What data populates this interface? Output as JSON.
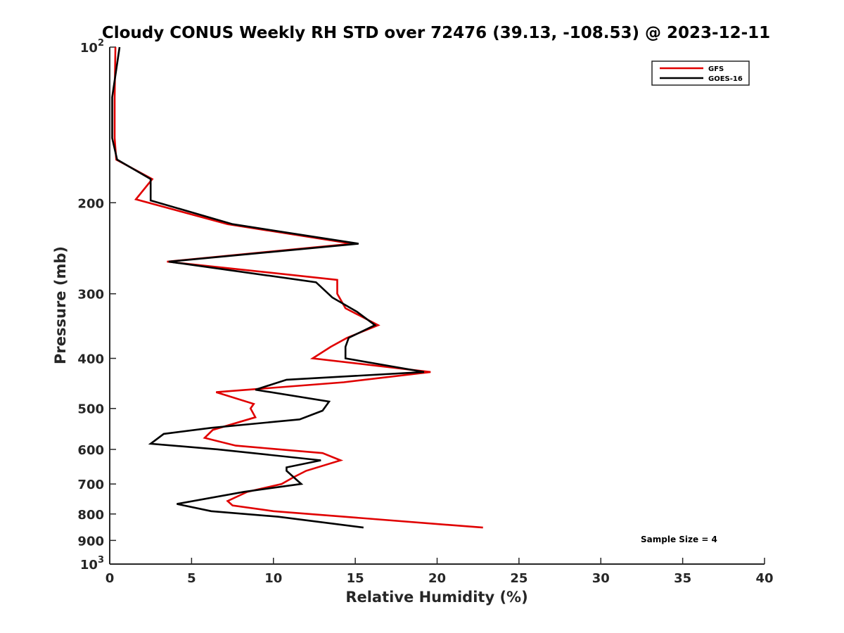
{
  "chart_data": {
    "type": "line",
    "title": "Cloudy CONUS Weekly RH STD over 72476 (39.13, -108.53) @ 2023-12-11",
    "xlabel": "Relative Humidity (%)",
    "ylabel": "Pressure (mb)",
    "xlim": [
      0,
      40
    ],
    "ylim": [
      100,
      1000
    ],
    "y_scale": "log",
    "y_reversed": true,
    "x_ticks": [
      0,
      5,
      10,
      15,
      20,
      25,
      30,
      35,
      40
    ],
    "x_tick_labels": [
      "0",
      "5",
      "10",
      "15",
      "20",
      "25",
      "30",
      "35",
      "40"
    ],
    "y_ticks": [
      100,
      200,
      300,
      400,
      500,
      600,
      700,
      800,
      900,
      1000
    ],
    "y_tick_labels": [
      {
        "base": "10",
        "exp": "2"
      },
      {
        "base": "200"
      },
      {
        "base": "300"
      },
      {
        "base": "400"
      },
      {
        "base": "500"
      },
      {
        "base": "600"
      },
      {
        "base": "700"
      },
      {
        "base": "800"
      },
      {
        "base": "900"
      },
      {
        "base": "10",
        "exp": "3"
      }
    ],
    "grid": false,
    "legend_position": "top-right",
    "annotation": "Sample Size = 4",
    "series": [
      {
        "name": "GFS",
        "color": "#e00000",
        "points": [
          [
            0.35,
            100
          ],
          [
            0.3,
            125
          ],
          [
            0.3,
            150
          ],
          [
            0.4,
            165
          ],
          [
            2.6,
            180
          ],
          [
            1.6,
            197
          ],
          [
            7.2,
            220
          ],
          [
            14.8,
            240
          ],
          [
            3.5,
            260
          ],
          [
            13.9,
            282
          ],
          [
            13.9,
            300
          ],
          [
            14.4,
            320
          ],
          [
            16.4,
            345
          ],
          [
            14.5,
            365
          ],
          [
            13.5,
            380
          ],
          [
            12.4,
            400
          ],
          [
            19.6,
            425
          ],
          [
            14.3,
            445
          ],
          [
            6.5,
            465
          ],
          [
            8.8,
            490
          ],
          [
            8.6,
            500
          ],
          [
            8.9,
            520
          ],
          [
            6.3,
            550
          ],
          [
            5.8,
            570
          ],
          [
            7.7,
            590
          ],
          [
            13.0,
            610
          ],
          [
            14.1,
            630
          ],
          [
            12.0,
            660
          ],
          [
            11.2,
            680
          ],
          [
            10.5,
            700
          ],
          [
            8.4,
            725
          ],
          [
            7.2,
            755
          ],
          [
            7.5,
            770
          ],
          [
            10.0,
            790
          ],
          [
            22.8,
            850
          ]
        ]
      },
      {
        "name": "GOES-16",
        "color": "#000000",
        "points": [
          [
            0.6,
            100
          ],
          [
            0.15,
            125
          ],
          [
            0.15,
            150
          ],
          [
            0.45,
            165
          ],
          [
            2.5,
            180
          ],
          [
            2.5,
            198
          ],
          [
            7.5,
            220
          ],
          [
            15.2,
            240
          ],
          [
            3.6,
            260
          ],
          [
            12.6,
            285
          ],
          [
            13.6,
            305
          ],
          [
            15.1,
            325
          ],
          [
            16.2,
            345
          ],
          [
            14.6,
            365
          ],
          [
            14.4,
            380
          ],
          [
            14.4,
            400
          ],
          [
            19.2,
            425
          ],
          [
            10.8,
            440
          ],
          [
            8.9,
            460
          ],
          [
            13.4,
            485
          ],
          [
            13.0,
            505
          ],
          [
            11.6,
            525
          ],
          [
            6.2,
            545
          ],
          [
            3.3,
            560
          ],
          [
            2.5,
            585
          ],
          [
            6.6,
            600
          ],
          [
            12.9,
            630
          ],
          [
            10.8,
            650
          ],
          [
            10.8,
            660
          ],
          [
            11.7,
            700
          ],
          [
            8.2,
            725
          ],
          [
            4.1,
            765
          ],
          [
            6.2,
            790
          ],
          [
            10.3,
            810
          ],
          [
            15.5,
            850
          ]
        ]
      }
    ]
  }
}
